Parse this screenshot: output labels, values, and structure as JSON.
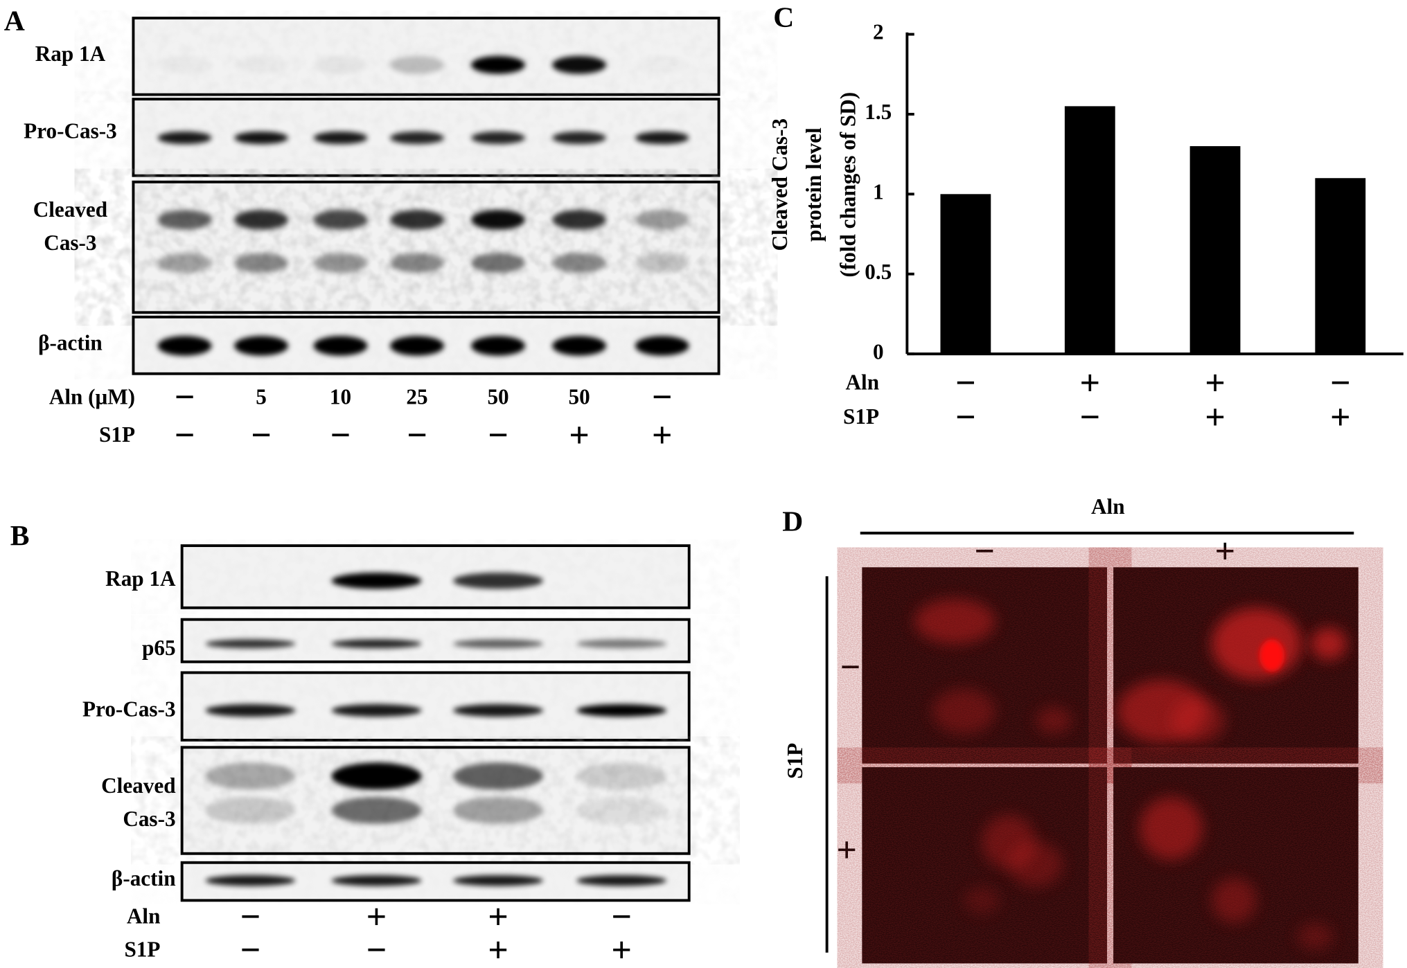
{
  "panel_a": {
    "label": "A",
    "blot_rows": [
      [
        "Rap 1A"
      ],
      [
        "Pro-Cas-3"
      ],
      [
        "Cleaved",
        "Cas-3"
      ],
      [
        "β-actin"
      ]
    ],
    "treatments": [
      {
        "name": "Aln (μM)",
        "levels": [
          "−",
          "5",
          "10",
          "25",
          "50",
          "50",
          "−"
        ]
      },
      {
        "name": "S1P",
        "levels": [
          "−",
          "−",
          "−",
          "−",
          "−",
          "+",
          "+"
        ]
      }
    ]
  },
  "panel_b": {
    "label": "B",
    "blot_rows": [
      [
        "Rap 1A"
      ],
      [
        "p65"
      ],
      [
        "Pro-Cas-3"
      ],
      [
        "Cleaved",
        "Cas-3"
      ],
      [
        "β-actin"
      ]
    ],
    "treatments": [
      {
        "name": "Aln",
        "levels": [
          "−",
          "+",
          "+",
          "−"
        ]
      },
      {
        "name": "S1P",
        "levels": [
          "−",
          "−",
          "+",
          "+"
        ]
      }
    ]
  },
  "chart_data": {
    "type": "bar",
    "label": "C",
    "y_label": [
      "Cleaved  Cas-3",
      "protein level",
      "(fold changes of SD)"
    ],
    "values": [
      1,
      1.55,
      1.3,
      1.1
    ],
    "color": "#000000",
    "ylim": [
      0,
      2
    ],
    "yticks": [
      0,
      0.5,
      1,
      1.5,
      2
    ],
    "grid": false,
    "treatments": [
      {
        "name": "Aln",
        "levels": [
          "−",
          "+",
          "+",
          "−"
        ]
      },
      {
        "name": "S1P",
        "levels": [
          "−",
          "−",
          "+",
          "+"
        ]
      }
    ]
  },
  "panel_d": {
    "label": "D",
    "column_factor": "Aln",
    "column_levels": [
      "−",
      "+"
    ],
    "row_factor": "S1P",
    "row_levels": [
      "−",
      "+"
    ]
  }
}
